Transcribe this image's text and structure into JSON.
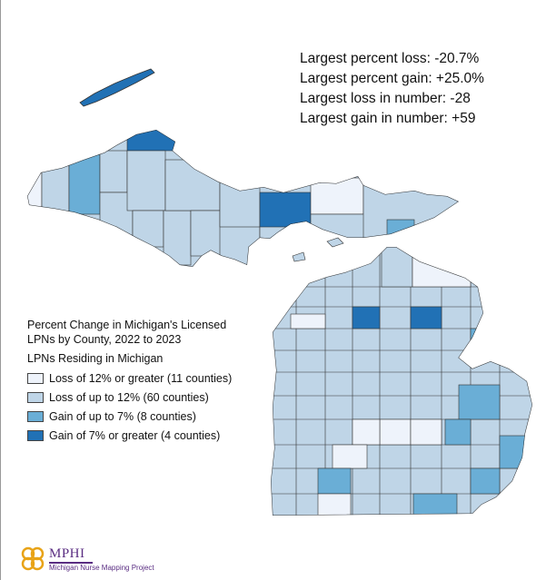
{
  "stats": {
    "largest_percent_loss": "Largest percent loss: -20.7%",
    "largest_percent_gain": "Largest percent gain: +25.0%",
    "largest_loss_number": "Largest loss in number: -28",
    "largest_gain_number": "Largest gain in number: +59"
  },
  "legend": {
    "title": "Percent Change in Michigan's Licensed LPNs by County, 2022 to 2023",
    "subtitle": "LPNs Residing in Michigan",
    "items": [
      {
        "label": "Loss of 12% or greater (11 counties)",
        "color": "#eef3fb"
      },
      {
        "label": "Loss of up to 12% (60 counties)",
        "color": "#bfd5e7"
      },
      {
        "label": "Gain of up to 7% (8 counties)",
        "color": "#6aaed6"
      },
      {
        "label": "Gain of 7% or greater (4 counties)",
        "color": "#2171b5"
      }
    ]
  },
  "logo": {
    "name": "MPHI",
    "subtitle": "Michigan Nurse Mapping Project"
  }
}
